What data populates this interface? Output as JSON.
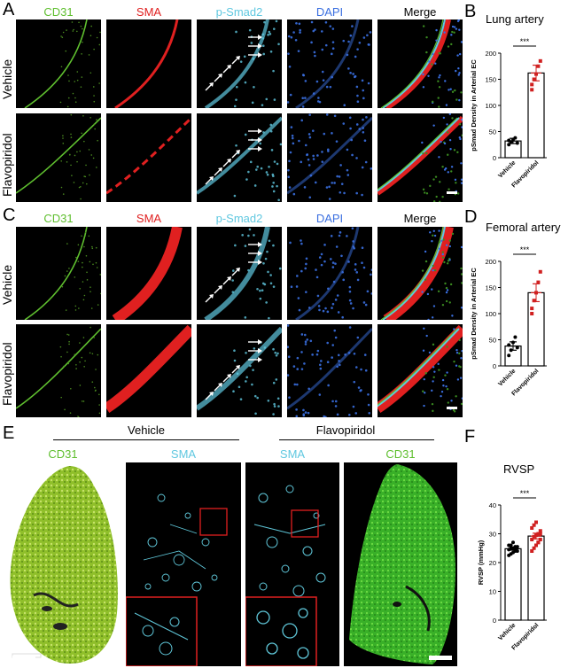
{
  "panels": {
    "A": "A",
    "B": "B",
    "C": "C",
    "D": "D",
    "E": "E",
    "F": "F"
  },
  "channels": {
    "cd31": "CD31",
    "sma": "SMA",
    "psmad": "p-Smad2",
    "dapi": "DAPI",
    "merge": "Merge"
  },
  "rows": {
    "vehicle": "Vehicle",
    "flavopiridol": "Flavopiridol"
  },
  "colors": {
    "green": "#5fbf2f",
    "red": "#e02020",
    "cyan": "#60c8e0",
    "blue": "#3a6fe0",
    "marker_red": "#d02020"
  },
  "panel_e": {
    "group_vehicle": "Vehicle",
    "group_flavopiridol": "Flavopiridol",
    "cd31": "CD31",
    "sma": "SMA"
  },
  "chart_data": [
    {
      "id": "B",
      "type": "bar",
      "title": "Lung artery",
      "ylabel": "pSmad Density in Arterial EC",
      "categories": [
        "Vehicle",
        "Flavopiridol"
      ],
      "values": [
        32,
        162
      ],
      "errors": [
        5,
        15
      ],
      "ylim": [
        0,
        200
      ],
      "yticks": [
        0,
        50,
        100,
        150,
        200
      ],
      "points": [
        [
          25,
          30,
          35,
          38,
          28,
          33
        ],
        [
          130,
          150,
          160,
          175,
          185,
          140
        ]
      ],
      "significance": "***"
    },
    {
      "id": "D",
      "type": "bar",
      "title": "Femoral artery",
      "ylabel": "pSmad Density in Arterial EC",
      "categories": [
        "Vehicle",
        "Flavopiridol"
      ],
      "values": [
        38,
        140
      ],
      "errors": [
        8,
        17
      ],
      "ylim": [
        0,
        200
      ],
      "yticks": [
        0,
        50,
        100,
        150,
        200
      ],
      "points": [
        [
          20,
          30,
          45,
          55,
          35,
          40
        ],
        [
          100,
          125,
          140,
          160,
          180,
          110
        ]
      ],
      "significance": "***"
    },
    {
      "id": "F",
      "type": "bar",
      "title": "RVSP",
      "ylabel": "RVSP (mmHg)",
      "categories": [
        "Vehicle",
        "Flavopiridol"
      ],
      "values": [
        24.8,
        29.2
      ],
      "errors": [
        0.5,
        1.0
      ],
      "ylim": [
        0,
        40
      ],
      "yticks": [
        0,
        10,
        20,
        30,
        40
      ],
      "points": [
        [
          22.5,
          23,
          23.5,
          24,
          24,
          24.5,
          25,
          25,
          25.5,
          25.5,
          26,
          26,
          27,
          24.5
        ],
        [
          24,
          25,
          26,
          27,
          28,
          28,
          29,
          29.5,
          30,
          31,
          32,
          33,
          34,
          27,
          30
        ]
      ],
      "significance": "***"
    }
  ]
}
